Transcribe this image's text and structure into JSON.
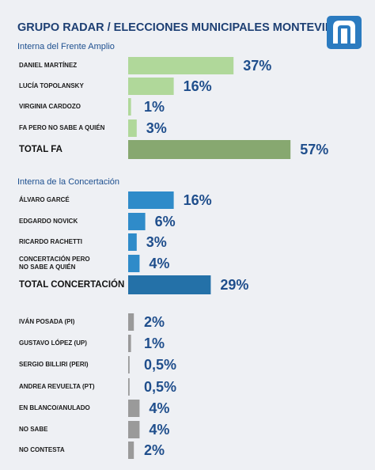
{
  "header": {
    "title": "GRUPO RADAR / ELECCIONES MUNICIPALES MONTEVIDEO"
  },
  "chart_data": [
    {
      "type": "bar",
      "subtitle": "Interna del Frente Amplio",
      "categories": [
        "DANIEL MARTÍNEZ",
        "LUCÍA TOPOLANSKY",
        "VIRGINIA CARDOZO",
        "FA PERO NO SABE A QUIÉN",
        "TOTAL FA"
      ],
      "values": [
        37,
        16,
        1,
        3,
        57
      ],
      "value_labels": [
        "37%",
        "16%",
        "1%",
        "3%",
        "57%"
      ],
      "colors": [
        "#b0d89a",
        "#b0d89a",
        "#b0d89a",
        "#b0d89a",
        "#87a870"
      ]
    },
    {
      "type": "bar",
      "subtitle": "Interna de la Concertación",
      "categories": [
        "ÁLVARO GARCÉ",
        "EDGARDO NOVICK",
        "RICARDO RACHETTI",
        "CONCERTACIÓN PERO\nNO SABE A QUIÉN",
        "TOTAL CONCERTACIÓN"
      ],
      "values": [
        16,
        6,
        3,
        4,
        29
      ],
      "value_labels": [
        "16%",
        "6%",
        "3%",
        "4%",
        "29%"
      ],
      "colors": [
        "#2f8bc9",
        "#2f8bc9",
        "#2f8bc9",
        "#2f8bc9",
        "#2471a8"
      ]
    },
    {
      "type": "bar",
      "categories": [
        "IVÁN POSADA (PI)",
        "GUSTAVO LÓPEZ (UP)",
        "SERGIO BILLIRI (PERI)",
        "ANDREA REVUELTA (PT)",
        "EN BLANCO/ANULADO",
        "NO SABE",
        "NO CONTESTA"
      ],
      "values": [
        2,
        1,
        0.5,
        0.5,
        4,
        4,
        2
      ],
      "value_labels": [
        "2%",
        "1%",
        "0,5%",
        "0,5%",
        "4%",
        "4%",
        "2%"
      ],
      "colors": [
        "#9a9a9a",
        "#9a9a9a",
        "#9a9a9a",
        "#9a9a9a",
        "#9a9a9a",
        "#9a9a9a",
        "#9a9a9a"
      ]
    }
  ]
}
